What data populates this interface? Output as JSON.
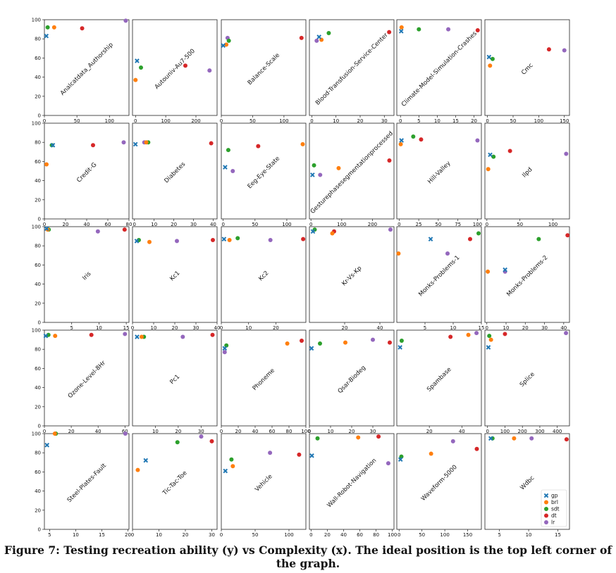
{
  "caption": "Figure 7: Testing recreation ability (y) vs Complexity (x). The ideal position is the top left corner of the graph.",
  "colors": {
    "gp": "#1f77b4",
    "brl": "#ff7f0e",
    "sdt": "#2ca02c",
    "dt": "#d62728",
    "lr": "#9467bd"
  },
  "legend": {
    "placement": "bottom-right of last panel",
    "entries": [
      "gp",
      "brl",
      "sdt",
      "dt",
      "lr"
    ]
  },
  "chart_data": [
    {
      "type": "scatter",
      "title": "Analcatdata_Authorship",
      "xlim": [
        0,
        130
      ],
      "xticks": [
        0,
        50,
        100
      ],
      "ylim": [
        0,
        100
      ],
      "yticks": [
        0,
        20,
        40,
        60,
        80,
        100
      ],
      "points": {
        "gp": [
          3,
          83
        ],
        "brl": [
          15,
          92
        ],
        "sdt": [
          5,
          92
        ],
        "dt": [
          58,
          91
        ],
        "lr": [
          125,
          99
        ]
      }
    },
    {
      "type": "scatter",
      "title": "Autouniv-Au7-500",
      "xlim": [
        -10,
        270
      ],
      "xticks": [
        0,
        100,
        200
      ],
      "ylim": [
        0,
        100
      ],
      "yticks": [],
      "points": {
        "gp": [
          5,
          57
        ],
        "brl": [
          0,
          37
        ],
        "sdt": [
          18,
          50
        ],
        "dt": [
          165,
          52
        ],
        "lr": [
          245,
          47
        ]
      }
    },
    {
      "type": "scatter",
      "title": "Balance-Scale",
      "xlim": [
        0,
        135
      ],
      "xticks": [
        0,
        50,
        100
      ],
      "ylim": [
        0,
        100
      ],
      "yticks": [],
      "points": {
        "gp": [
          3,
          73
        ],
        "brl": [
          8,
          74
        ],
        "sdt": [
          12,
          78
        ],
        "dt": [
          128,
          81
        ],
        "lr": [
          10,
          81
        ]
      }
    },
    {
      "type": "scatter",
      "title": "Blood-Transfusion-Service-Center",
      "xlim": [
        -1,
        34
      ],
      "xticks": [
        0,
        10,
        20,
        30
      ],
      "ylim": [
        0,
        100
      ],
      "yticks": [],
      "points": {
        "gp": [
          3,
          82
        ],
        "brl": [
          4,
          79
        ],
        "sdt": [
          7,
          86
        ],
        "dt": [
          32,
          87
        ],
        "lr": [
          2,
          78
        ]
      }
    },
    {
      "type": "scatter",
      "title": "Climate-Model-Simulation-Crashes",
      "xlim": [
        -1,
        22
      ],
      "xticks": [
        0,
        5,
        10,
        15,
        20
      ],
      "ylim": [
        0,
        100
      ],
      "yticks": [],
      "points": {
        "gp": [
          0.2,
          88
        ],
        "brl": [
          0.3,
          92
        ],
        "sdt": [
          5,
          90
        ],
        "dt": [
          21,
          89
        ],
        "lr": [
          13,
          90
        ]
      }
    },
    {
      "type": "scatter",
      "title": "Cmc",
      "xlim": [
        -5,
        160
      ],
      "xticks": [
        0,
        50,
        100,
        150
      ],
      "ylim": [
        0,
        100
      ],
      "yticks": [],
      "points": {
        "gp": [
          3,
          61
        ],
        "brl": [
          5,
          52
        ],
        "sdt": [
          10,
          59
        ],
        "dt": [
          120,
          69
        ],
        "lr": [
          150,
          68
        ]
      }
    },
    {
      "type": "scatter",
      "title": "Credit-G",
      "xlim": [
        0,
        80
      ],
      "xticks": [
        0,
        20,
        40,
        60,
        80
      ],
      "ylim": [
        0,
        100
      ],
      "yticks": [
        0,
        20,
        40,
        60,
        80,
        100
      ],
      "points": {
        "gp": [
          8,
          77
        ],
        "brl": [
          2,
          57
        ],
        "sdt": [
          7,
          77
        ],
        "dt": [
          46,
          77
        ],
        "lr": [
          75,
          80
        ]
      }
    },
    {
      "type": "scatter",
      "title": "Diabetes",
      "xlim": [
        -1,
        42
      ],
      "xticks": [
        0,
        10,
        20,
        30,
        40
      ],
      "ylim": [
        0,
        100
      ],
      "yticks": [],
      "points": {
        "gp": [
          0.5,
          78
        ],
        "brl": [
          6,
          80
        ],
        "sdt": [
          7,
          80
        ],
        "dt": [
          39,
          79
        ],
        "lr": [
          5,
          80
        ]
      }
    },
    {
      "type": "scatter",
      "title": "Eeg-Eye-State",
      "xlim": [
        -3,
        130
      ],
      "xticks": [
        0,
        50,
        100
      ],
      "ylim": [
        0,
        100
      ],
      "yticks": [],
      "points": {
        "gp": [
          3,
          54
        ],
        "brl": [
          125,
          78
        ],
        "sdt": [
          8,
          72
        ],
        "dt": [
          55,
          76
        ],
        "lr": [
          15,
          50
        ]
      }
    },
    {
      "type": "scatter",
      "title": "Gesturephasesegmentationprocessed",
      "xlim": [
        -5,
        270
      ],
      "xticks": [
        0,
        100,
        200
      ],
      "ylim": [
        0,
        100
      ],
      "yticks": [],
      "points": {
        "gp": [
          5,
          46
        ],
        "brl": [
          90,
          53
        ],
        "sdt": [
          10,
          56
        ],
        "dt": [
          255,
          61
        ],
        "lr": [
          30,
          46
        ]
      }
    },
    {
      "type": "scatter",
      "title": "Hill-Valley",
      "xlim": [
        -3,
        105
      ],
      "xticks": [
        0,
        25,
        50,
        75,
        100
      ],
      "ylim": [
        0,
        100
      ],
      "yticks": [],
      "points": {
        "gp": [
          3,
          82
        ],
        "brl": [
          2,
          78
        ],
        "sdt": [
          18,
          86
        ],
        "dt": [
          28,
          83
        ],
        "lr": [
          100,
          82
        ]
      }
    },
    {
      "type": "scatter",
      "title": "Ilpd",
      "xlim": [
        -3,
        125
      ],
      "xticks": [
        0,
        50,
        100
      ],
      "ylim": [
        0,
        100
      ],
      "yticks": [],
      "points": {
        "gp": [
          5,
          67
        ],
        "brl": [
          2,
          52
        ],
        "sdt": [
          10,
          65
        ],
        "dt": [
          35,
          71
        ],
        "lr": [
          120,
          68
        ]
      }
    },
    {
      "type": "scatter",
      "title": "Iris",
      "xlim": [
        0,
        15.5
      ],
      "xticks": [
        5,
        10,
        15
      ],
      "ylim": [
        0,
        100
      ],
      "yticks": [
        0,
        20,
        40,
        60,
        80,
        100
      ],
      "points": {
        "gp": [
          0.4,
          98
        ],
        "brl": [
          0.6,
          97
        ],
        "sdt": [
          0.8,
          97
        ],
        "dt": [
          14.7,
          97
        ],
        "lr": [
          9.8,
          95
        ]
      }
    },
    {
      "type": "scatter",
      "title": "Kc1",
      "xlim": [
        0,
        40
      ],
      "xticks": [
        0,
        10,
        20,
        30,
        40
      ],
      "ylim": [
        0,
        100
      ],
      "yticks": [],
      "points": {
        "gp": [
          2,
          85
        ],
        "brl": [
          8,
          84
        ],
        "sdt": [
          3,
          86
        ],
        "dt": [
          38,
          86
        ],
        "lr": [
          21,
          85
        ]
      }
    },
    {
      "type": "scatter",
      "title": "Kc2",
      "xlim": [
        0,
        31
      ],
      "xticks": [
        0,
        10,
        20
      ],
      "ylim": [
        0,
        100
      ],
      "yticks": [],
      "points": {
        "gp": [
          1,
          87
        ],
        "brl": [
          3,
          86
        ],
        "sdt": [
          6,
          88
        ],
        "dt": [
          30,
          87
        ],
        "lr": [
          18,
          86
        ]
      }
    },
    {
      "type": "scatter",
      "title": "Kr-Vs-Kp",
      "xlim": [
        0,
        48
      ],
      "xticks": [
        20,
        40
      ],
      "ylim": [
        0,
        100
      ],
      "yticks": [],
      "points": {
        "gp": [
          2,
          95
        ],
        "brl": [
          13,
          93
        ],
        "sdt": [
          3,
          97
        ],
        "dt": [
          14,
          95
        ],
        "lr": [
          46,
          97
        ]
      }
    },
    {
      "type": "scatter",
      "title": "Monks-Problems-1",
      "xlim": [
        0,
        15
      ],
      "xticks": [
        5,
        10,
        15
      ],
      "ylim": [
        0,
        100
      ],
      "yticks": [],
      "points": {
        "gp": [
          6,
          87
        ],
        "brl": [
          0.3,
          72
        ],
        "sdt": [
          14.5,
          93
        ],
        "dt": [
          13,
          87
        ],
        "lr": [
          9,
          72
        ]
      }
    },
    {
      "type": "scatter",
      "title": "Monks-Problems-2",
      "xlim": [
        -1,
        43
      ],
      "xticks": [
        0,
        10,
        20,
        30,
        40
      ],
      "ylim": [
        0,
        100
      ],
      "yticks": [],
      "points": {
        "gp": [
          9.5,
          55
        ],
        "brl": [
          0.5,
          53
        ],
        "sdt": [
          27,
          87
        ],
        "dt": [
          42,
          91
        ],
        "lr": [
          9.5,
          53
        ]
      }
    },
    {
      "type": "scatter",
      "title": "Ozone-Level-8Hr",
      "xlim": [
        0,
        63
      ],
      "xticks": [
        0,
        20,
        40,
        60
      ],
      "ylim": [
        0,
        100
      ],
      "yticks": [
        0,
        20,
        40,
        60,
        80,
        100
      ],
      "points": {
        "gp": [
          1,
          94
        ],
        "brl": [
          8,
          94
        ],
        "sdt": [
          3,
          95
        ],
        "dt": [
          35,
          95
        ],
        "lr": [
          60,
          96
        ]
      }
    },
    {
      "type": "scatter",
      "title": "Pc1",
      "xlim": [
        0,
        37
      ],
      "xticks": [
        10,
        20,
        30
      ],
      "ylim": [
        0,
        100
      ],
      "yticks": [],
      "points": {
        "gp": [
          2,
          93
        ],
        "brl": [
          4,
          93
        ],
        "sdt": [
          5,
          93
        ],
        "dt": [
          35,
          95
        ],
        "lr": [
          22,
          93
        ]
      }
    },
    {
      "type": "scatter",
      "title": "Phoneme",
      "xlim": [
        0,
        100
      ],
      "xticks": [
        0,
        20,
        40,
        60,
        80,
        100
      ],
      "ylim": [
        0,
        100
      ],
      "yticks": [],
      "points": {
        "gp": [
          4,
          81
        ],
        "brl": [
          78,
          86
        ],
        "sdt": [
          6,
          84
        ],
        "dt": [
          95,
          89
        ],
        "lr": [
          4,
          77
        ]
      }
    },
    {
      "type": "scatter",
      "title": "Qsar-Biodeg",
      "xlim": [
        0,
        40
      ],
      "xticks": [
        0,
        10,
        20,
        30
      ],
      "ylim": [
        0,
        100
      ],
      "yticks": [],
      "points": {
        "gp": [
          1,
          81
        ],
        "brl": [
          17,
          87
        ],
        "sdt": [
          5,
          86
        ],
        "dt": [
          38,
          87
        ],
        "lr": [
          30,
          90
        ]
      }
    },
    {
      "type": "scatter",
      "title": "Spambase",
      "xlim": [
        0,
        52
      ],
      "xticks": [
        20,
        40
      ],
      "ylim": [
        0,
        100
      ],
      "yticks": [],
      "points": {
        "gp": [
          2,
          82
        ],
        "brl": [
          44,
          95
        ],
        "sdt": [
          3,
          89
        ],
        "dt": [
          33,
          93
        ],
        "lr": [
          49,
          97
        ]
      }
    },
    {
      "type": "scatter",
      "title": "Splice",
      "xlim": [
        -15,
        470
      ],
      "xticks": [
        0,
        100,
        200,
        300,
        400
      ],
      "ylim": [
        0,
        100
      ],
      "yticks": [],
      "points": {
        "gp": [
          5,
          82
        ],
        "brl": [
          20,
          90
        ],
        "sdt": [
          10,
          94
        ],
        "dt": [
          100,
          96
        ],
        "lr": [
          450,
          97
        ]
      }
    },
    {
      "type": "scatter",
      "title": "Steel-Plates-Fault",
      "xlim": [
        4,
        20.2
      ],
      "xticks": [
        5,
        10,
        15,
        20
      ],
      "ylim": [
        0,
        100
      ],
      "yticks": [
        0,
        20,
        40,
        60,
        80,
        100
      ],
      "points": {
        "gp": [
          4.5,
          88
        ],
        "brl": [
          6,
          100
        ],
        "sdt": [
          6.2,
          100
        ],
        "dt": [
          6.1,
          100
        ],
        "lr": [
          19.5,
          100
        ]
      }
    },
    {
      "type": "scatter",
      "title": "Tic-Tac-Toe",
      "xlim": [
        0,
        32
      ],
      "xticks": [
        0,
        10,
        20,
        30
      ],
      "ylim": [
        0,
        100
      ],
      "yticks": [],
      "points": {
        "gp": [
          5,
          72
        ],
        "brl": [
          2,
          62
        ],
        "sdt": [
          17,
          91
        ],
        "dt": [
          30,
          92
        ],
        "lr": [
          26,
          97
        ]
      }
    },
    {
      "type": "scatter",
      "title": "Vehicle",
      "xlim": [
        0,
        125
      ],
      "xticks": [
        0,
        50,
        100
      ],
      "ylim": [
        0,
        100
      ],
      "yticks": [],
      "points": {
        "gp": [
          6,
          61
        ],
        "brl": [
          17,
          66
        ],
        "sdt": [
          15,
          73
        ],
        "dt": [
          115,
          78
        ],
        "lr": [
          72,
          80
        ]
      }
    },
    {
      "type": "scatter",
      "title": "Wall-Robot-Navigation",
      "xlim": [
        -2,
        102
      ],
      "xticks": [
        0,
        20,
        40,
        60,
        80,
        100
      ],
      "ylim": [
        0,
        100
      ],
      "yticks": [],
      "points": {
        "gp": [
          1,
          77
        ],
        "brl": [
          58,
          96
        ],
        "sdt": [
          8,
          95
        ],
        "dt": [
          83,
          97
        ],
        "lr": [
          95,
          69
        ]
      }
    },
    {
      "type": "scatter",
      "title": "Waveform-5000",
      "xlim": [
        -5,
        180
      ],
      "xticks": [
        0,
        50,
        100,
        150
      ],
      "ylim": [
        0,
        100
      ],
      "yticks": [],
      "points": {
        "gp": [
          3,
          73
        ],
        "brl": [
          70,
          79
        ],
        "sdt": [
          5,
          76
        ],
        "dt": [
          170,
          84
        ],
        "lr": [
          118,
          92
        ]
      }
    },
    {
      "type": "scatter",
      "title": "Wdbc",
      "xlim": [
        2.5,
        17
      ],
      "xticks": [
        5,
        10,
        15
      ],
      "ylim": [
        0,
        100
      ],
      "yticks": [],
      "points": {
        "gp": [
          3.5,
          95
        ],
        "brl": [
          7.5,
          95
        ],
        "sdt": [
          3.8,
          95
        ],
        "dt": [
          16.5,
          94
        ],
        "lr": [
          10.5,
          95
        ]
      }
    }
  ]
}
